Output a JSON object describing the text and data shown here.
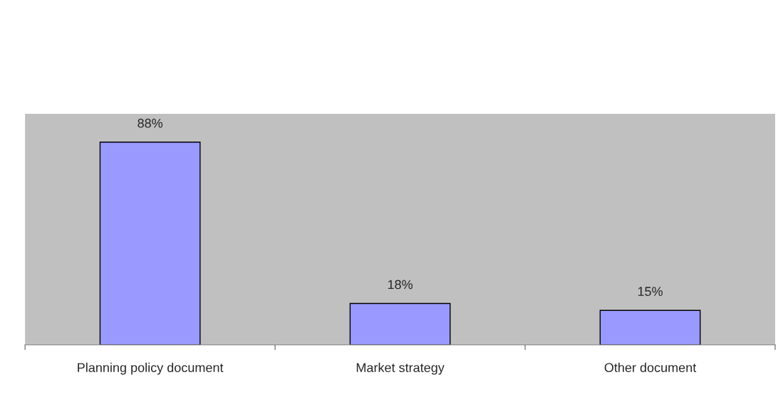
{
  "chart_data": {
    "type": "bar",
    "categories": [
      "Planning policy document",
      "Market strategy",
      "Other document"
    ],
    "values": [
      88,
      18,
      15
    ],
    "color": "#9999ff",
    "value_labels": [
      "88%",
      "18%",
      "15%"
    ],
    "grid": false,
    "legend": false
  }
}
